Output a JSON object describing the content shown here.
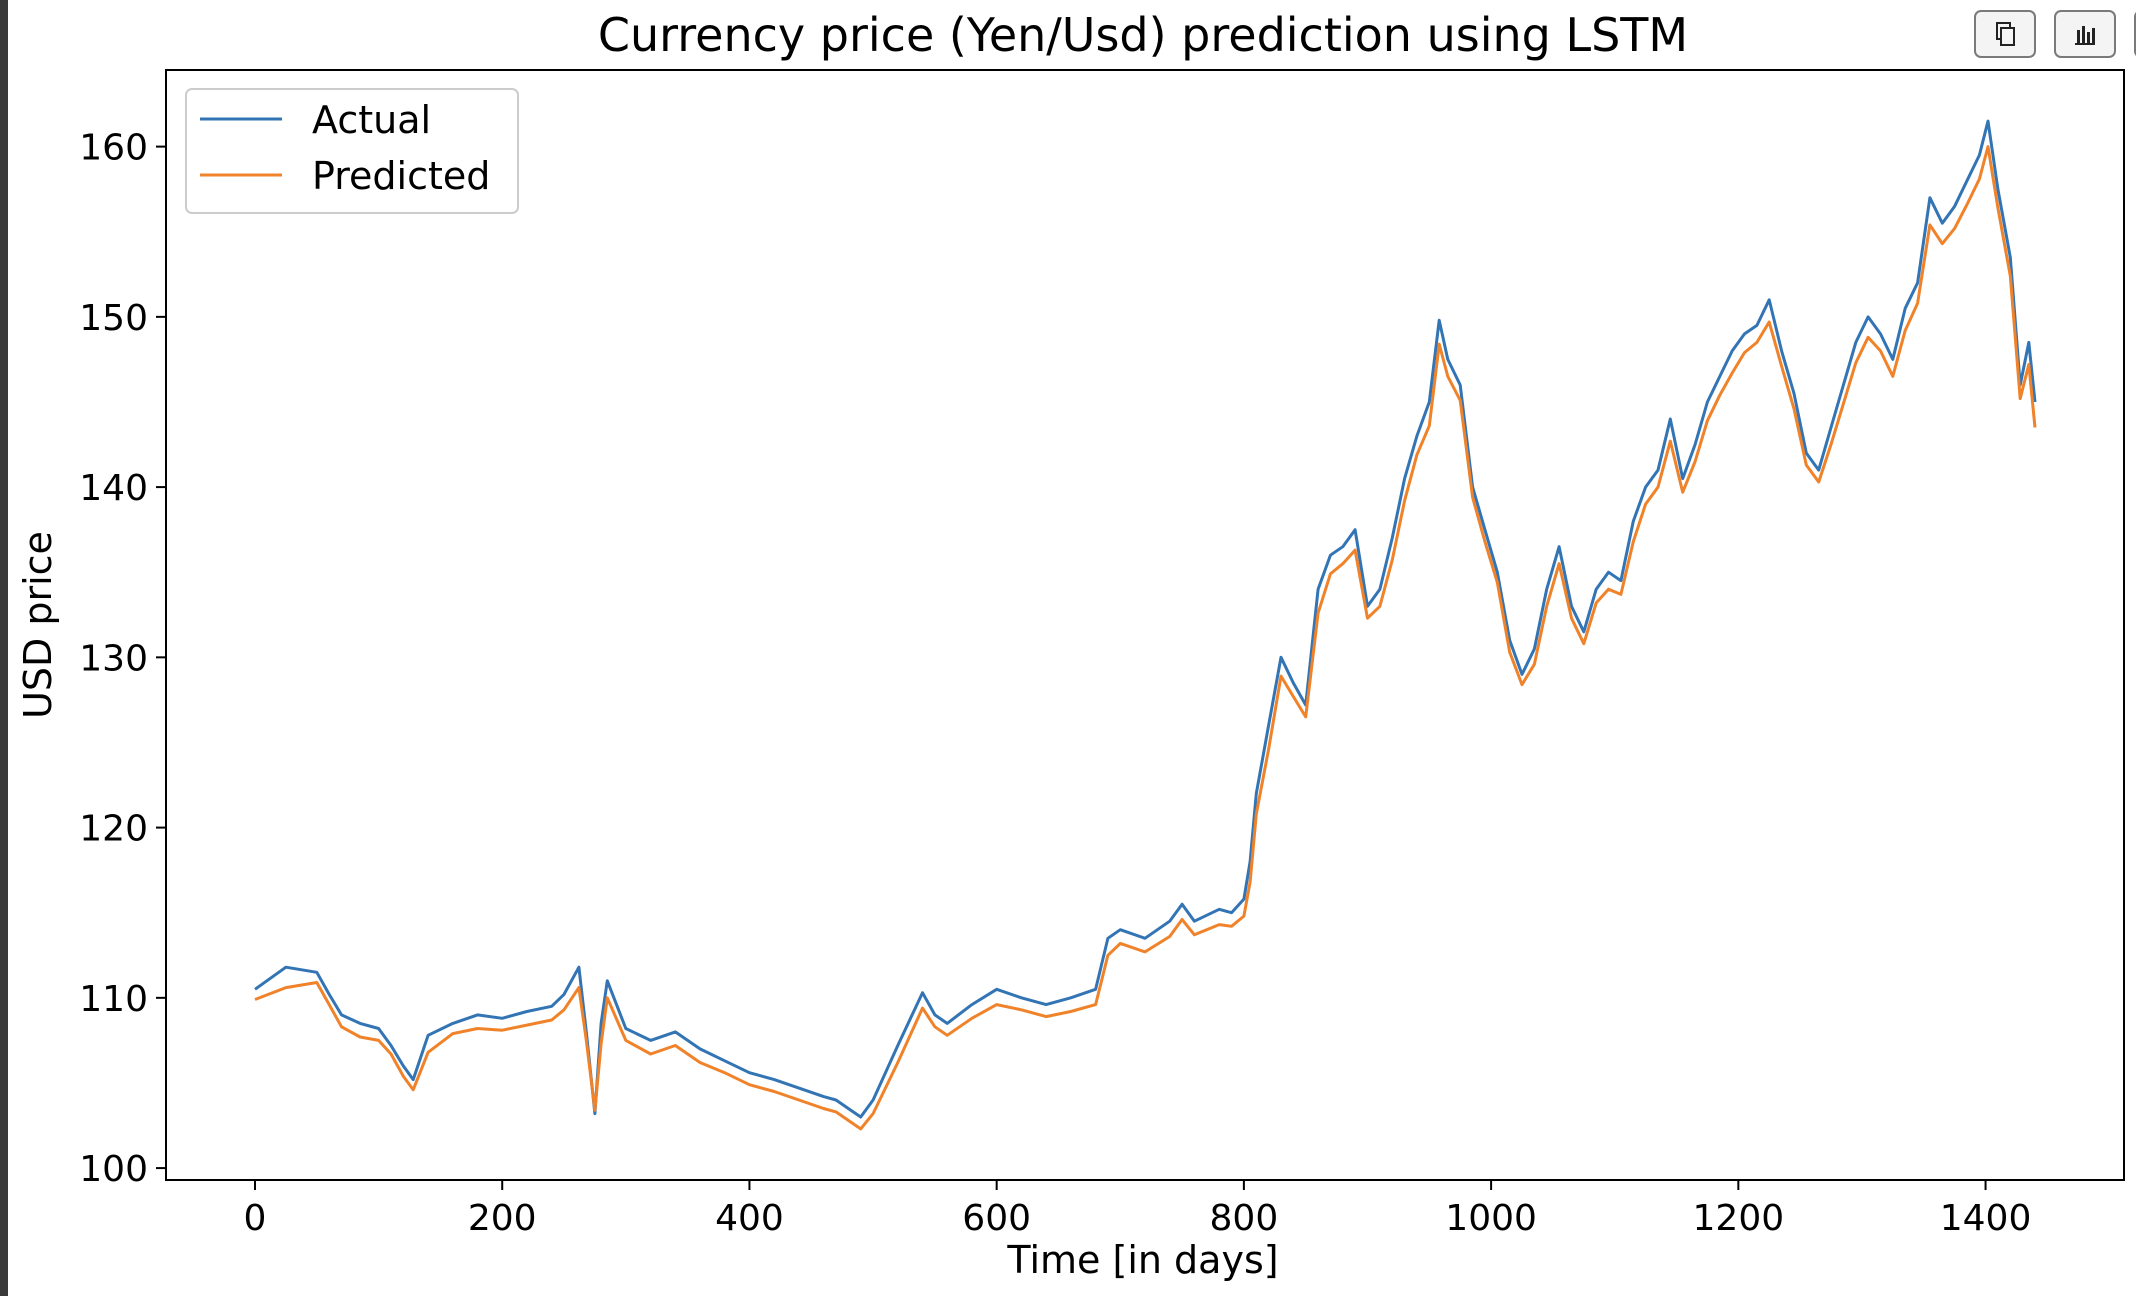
{
  "toolbar": {
    "buttons": [
      {
        "name": "copy-button",
        "icon": "copy-icon"
      },
      {
        "name": "chart-button",
        "icon": "bar-chart-icon"
      },
      {
        "name": "save-button",
        "icon": "save-icon"
      }
    ]
  },
  "chart_data": {
    "type": "line",
    "title": "Currency price (Yen/Usd) prediction using LSTM",
    "xlabel": "Time [in days]",
    "ylabel": "USD price",
    "xlim": [
      -72,
      1512
    ],
    "ylim": [
      99.3,
      164.5
    ],
    "xticks": [
      0,
      200,
      400,
      600,
      800,
      1000,
      1200,
      1400
    ],
    "yticks": [
      100,
      110,
      120,
      130,
      140,
      150,
      160
    ],
    "grid": false,
    "legend": {
      "position": "top-left"
    },
    "colors": {
      "actual": "#3274b4",
      "predicted": "#f0822a"
    },
    "predicted_offset_note": "",
    "x": [
      0,
      25,
      50,
      60,
      70,
      85,
      100,
      110,
      120,
      128,
      140,
      160,
      180,
      200,
      220,
      240,
      250,
      262,
      268,
      275,
      280,
      285,
      300,
      320,
      340,
      360,
      380,
      400,
      420,
      440,
      460,
      470,
      480,
      490,
      500,
      520,
      540,
      550,
      560,
      580,
      600,
      620,
      640,
      660,
      680,
      690,
      700,
      720,
      740,
      750,
      760,
      780,
      790,
      800,
      805,
      810,
      820,
      830,
      840,
      850,
      860,
      870,
      880,
      890,
      900,
      910,
      920,
      930,
      940,
      950,
      958,
      965,
      975,
      985,
      995,
      1005,
      1015,
      1025,
      1035,
      1045,
      1055,
      1065,
      1075,
      1085,
      1095,
      1105,
      1115,
      1125,
      1135,
      1145,
      1155,
      1165,
      1175,
      1185,
      1195,
      1205,
      1215,
      1225,
      1235,
      1245,
      1255,
      1265,
      1275,
      1285,
      1295,
      1305,
      1315,
      1325,
      1335,
      1345,
      1355,
      1365,
      1375,
      1385,
      1395,
      1402,
      1410,
      1420,
      1428,
      1435,
      1440
    ],
    "series": [
      {
        "name": "Actual",
        "values": [
          110.5,
          111.8,
          111.5,
          110.2,
          109.0,
          108.5,
          108.2,
          107.2,
          106.0,
          105.2,
          107.8,
          108.5,
          109.0,
          108.8,
          109.2,
          109.5,
          110.2,
          111.8,
          108.0,
          103.2,
          108.5,
          111.0,
          108.2,
          107.5,
          108.0,
          107.0,
          106.3,
          105.6,
          105.2,
          104.7,
          104.2,
          104.0,
          103.5,
          103.0,
          104.0,
          107.2,
          110.3,
          109.0,
          108.5,
          109.6,
          110.5,
          110.0,
          109.6,
          110.0,
          110.5,
          113.5,
          114.0,
          113.5,
          114.5,
          115.5,
          114.5,
          115.2,
          115.0,
          115.8,
          118.0,
          122.0,
          126.0,
          130.0,
          128.5,
          127.2,
          134.0,
          136.0,
          136.5,
          137.5,
          133.0,
          134.0,
          137.0,
          140.5,
          143.0,
          145.0,
          149.8,
          147.5,
          146.0,
          140.0,
          137.5,
          135.0,
          131.0,
          129.0,
          130.5,
          134.0,
          136.5,
          133.0,
          131.5,
          134.0,
          135.0,
          134.5,
          138.0,
          140.0,
          141.0,
          144.0,
          140.5,
          142.5,
          145.0,
          146.5,
          148.0,
          149.0,
          149.5,
          151.0,
          148.0,
          145.5,
          142.0,
          141.0,
          143.5,
          146.0,
          148.5,
          150.0,
          149.0,
          147.5,
          150.5,
          152.0,
          157.0,
          155.5,
          156.5,
          158.0,
          159.5,
          161.5,
          157.5,
          153.5,
          146.0,
          148.5,
          145.0
        ]
      },
      {
        "name": "Predicted",
        "values": [
          109.9,
          110.6,
          110.9,
          109.6,
          108.3,
          107.7,
          107.5,
          106.7,
          105.4,
          104.6,
          106.8,
          107.9,
          108.2,
          108.1,
          108.4,
          108.7,
          109.3,
          110.6,
          107.5,
          103.4,
          107.3,
          110.0,
          107.5,
          106.7,
          107.2,
          106.2,
          105.6,
          104.9,
          104.5,
          104.0,
          103.5,
          103.3,
          102.8,
          102.3,
          103.2,
          106.2,
          109.4,
          108.3,
          107.8,
          108.8,
          109.6,
          109.3,
          108.9,
          109.2,
          109.6,
          112.5,
          113.2,
          112.7,
          113.6,
          114.6,
          113.7,
          114.3,
          114.2,
          114.8,
          116.8,
          120.8,
          124.6,
          128.9,
          127.7,
          126.5,
          132.6,
          134.9,
          135.5,
          136.3,
          132.3,
          133.0,
          135.7,
          139.2,
          141.9,
          143.6,
          148.4,
          146.5,
          145.1,
          139.4,
          136.8,
          134.4,
          130.3,
          128.4,
          129.6,
          133.0,
          135.5,
          132.3,
          130.8,
          133.2,
          134.0,
          133.7,
          136.8,
          139.0,
          140.0,
          142.7,
          139.7,
          141.5,
          143.9,
          145.4,
          146.7,
          147.9,
          148.5,
          149.7,
          147.1,
          144.6,
          141.3,
          140.3,
          142.5,
          144.9,
          147.3,
          148.8,
          148.0,
          146.5,
          149.2,
          150.8,
          155.4,
          154.3,
          155.2,
          156.6,
          158.1,
          160.0,
          156.4,
          152.4,
          145.2,
          147.2,
          143.5
        ]
      }
    ]
  }
}
